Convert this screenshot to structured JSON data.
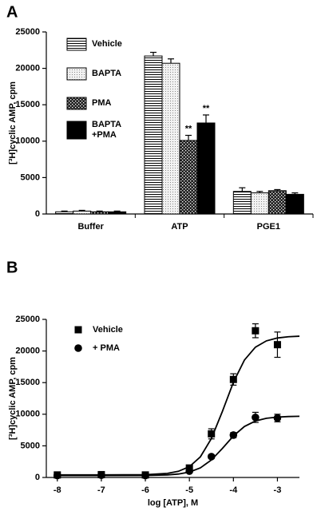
{
  "chart_data": [
    {
      "type": "bar",
      "panel_label": "A",
      "ylabel": "[³H]cyclic AMP, cpm",
      "categories": [
        "Buffer",
        "ATP",
        "PGE1"
      ],
      "ylim": [
        0,
        25000
      ],
      "yticks": [
        0,
        5000,
        10000,
        15000,
        20000,
        25000
      ],
      "legend": "upper left",
      "series": [
        {
          "name": "Vehicle",
          "pattern": "hlines",
          "values": [
            300,
            21700,
            3100
          ],
          "errors": [
            100,
            500,
            500
          ]
        },
        {
          "name": "BAPTA",
          "pattern": "dots",
          "values": [
            400,
            20700,
            2900
          ],
          "errors": [
            100,
            600,
            200
          ]
        },
        {
          "name": "PMA",
          "pattern": "crosshatch",
          "values": [
            300,
            10100,
            3200
          ],
          "errors": [
            100,
            700,
            150
          ]
        },
        {
          "name": "BAPTA +PMA",
          "pattern": "solid",
          "values": [
            300,
            12500,
            2700
          ],
          "errors": [
            100,
            1100,
            200
          ]
        }
      ],
      "annotations": [
        {
          "text": "**",
          "category": 1,
          "series": 2
        },
        {
          "text": "**",
          "category": 1,
          "series": 3
        }
      ]
    },
    {
      "type": "scatter",
      "panel_label": "B",
      "ylabel": "[³H]cyclic AMP, cpm",
      "xlabel": "log [ATP], M",
      "xlim": [
        -8.25,
        -2.5
      ],
      "xticks": [
        -8,
        -7,
        -6,
        -5,
        -4,
        -3
      ],
      "ylim": [
        0,
        25000
      ],
      "yticks": [
        0,
        5000,
        10000,
        15000,
        20000,
        25000
      ],
      "legend": "upper left",
      "fit_x": [
        -8,
        -7,
        -6,
        -5.5,
        -5.25,
        -5,
        -4.75,
        -4.5,
        -4.25,
        -4,
        -3.75,
        -3.5,
        -3.25,
        -3,
        -2.75,
        -2.5
      ],
      "series": [
        {
          "name": "Vehicle",
          "marker": "square",
          "color": "#000000",
          "x": [
            -8,
            -7,
            -6,
            -5,
            -4.5,
            -4,
            -3.5,
            -3
          ],
          "values": [
            400,
            450,
            400,
            1500,
            6900,
            15500,
            23200,
            21000
          ],
          "errors": [
            100,
            100,
            100,
            300,
            800,
            900,
            1100,
            2000
          ],
          "fit": [
            400,
            401,
            444,
            644,
            970,
            1706,
            3264,
            6162,
            10450,
            15057,
            18566,
            20600,
            21603,
            22057,
            22254,
            22338
          ]
        },
        {
          "name": "+ PMA",
          "marker": "circle",
          "color": "#000000",
          "x": [
            -8,
            -7,
            -6,
            -5,
            -4.5,
            -4,
            -3.5,
            -3
          ],
          "values": [
            300,
            350,
            300,
            1000,
            3300,
            6700,
            9500,
            9400
          ],
          "errors": [
            100,
            100,
            100,
            200,
            300,
            400,
            800,
            600
          ],
          "fit": [
            300,
            301,
            319,
            404,
            543,
            857,
            1524,
            2762,
            4596,
            6560,
            8064,
            8929,
            9360,
            9553,
            9638,
            9674
          ]
        }
      ]
    }
  ]
}
